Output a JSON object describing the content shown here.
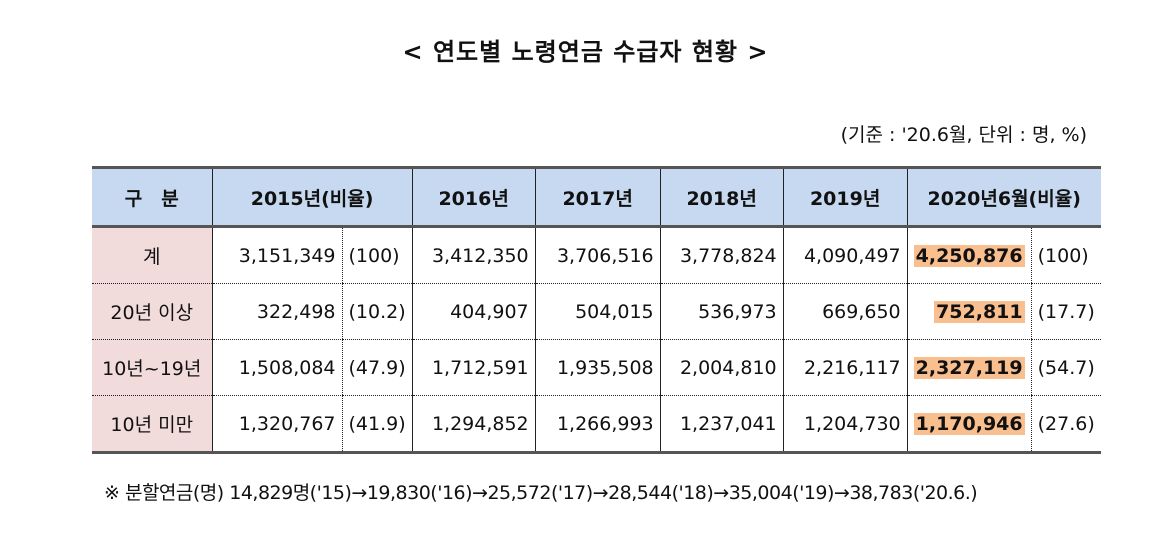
{
  "title": "< 연도별 노령연금 수급자 현황 >",
  "unit": "(기준 : '20.6월, 단위 : 명, %)",
  "headers": [
    "구　분",
    "2015년(비율)",
    "2016년",
    "2017년",
    "2018년",
    "2019년",
    "2020년6월(비율)"
  ],
  "rows": [
    {
      "label": "계",
      "v2015": "3,151,349",
      "r2015": "(100)",
      "v2016": "3,412,350",
      "v2017": "3,706,516",
      "v2018": "3,778,824",
      "v2019": "4,090,497",
      "v2020": "4,250,876",
      "r2020": "(100)"
    },
    {
      "label": "20년 이상",
      "v2015": "322,498",
      "r2015": "(10.2)",
      "v2016": "404,907",
      "v2017": "504,015",
      "v2018": "536,973",
      "v2019": "669,650",
      "v2020": "752,811",
      "r2020": "(17.7)"
    },
    {
      "label": "10년~19년",
      "v2015": "1,508,084",
      "r2015": "(47.9)",
      "v2016": "1,712,591",
      "v2017": "1,935,508",
      "v2018": "2,004,810",
      "v2019": "2,216,117",
      "v2020": "2,327,119",
      "r2020": "(54.7)"
    },
    {
      "label": "10년 미만",
      "v2015": "1,320,767",
      "r2015": "(41.9)",
      "v2016": "1,294,852",
      "v2017": "1,266,993",
      "v2018": "1,237,041",
      "v2019": "1,204,730",
      "v2020": "1,170,946",
      "r2020": "(27.6)"
    }
  ],
  "note": "※  분할연금(명)  14,829명('15)→19,830('16)→25,572('17)→28,544('18)→35,004('19)→38,783('20.6.)",
  "colors": {
    "header_bg": "#c6d9f0",
    "label_bg": "#f2dcdb",
    "highlight": "#fabf8f"
  }
}
